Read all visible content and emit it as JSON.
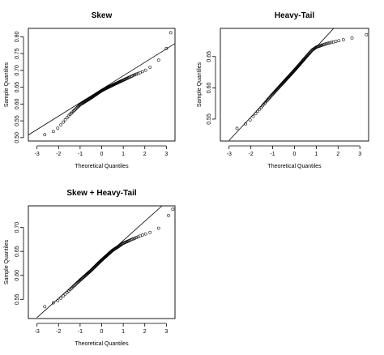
{
  "chart_data": [
    {
      "type": "scatter",
      "title": "Skew",
      "xlabel": "Theoretical Quantiles",
      "ylabel": "Sample Quantiles",
      "xlim": [
        -3.4,
        3.4
      ],
      "ylim": [
        0.49,
        0.825
      ],
      "xticks": [
        -3,
        -2,
        -1,
        0,
        1,
        2,
        3
      ],
      "yticks": [
        0.5,
        0.55,
        0.6,
        0.65,
        0.7,
        0.75,
        0.8
      ],
      "ytick_labels": [
        "0.50",
        "0.55",
        "0.60",
        "0.65",
        "0.70",
        "0.75",
        "0.80"
      ],
      "reference_line": {
        "x": [
          -3.4,
          3.4
        ],
        "y": [
          0.508,
          0.78
        ]
      },
      "qq_curve": [
        [
          -3.25,
          0.496
        ],
        [
          -2.8,
          0.505
        ],
        [
          -2.3,
          0.516
        ],
        [
          -2.0,
          0.53
        ],
        [
          -1.5,
          0.567
        ],
        [
          -1.0,
          0.598
        ],
        [
          -0.5,
          0.618
        ],
        [
          0.0,
          0.64
        ],
        [
          0.5,
          0.656
        ],
        [
          1.0,
          0.671
        ],
        [
          1.5,
          0.686
        ],
        [
          2.0,
          0.699
        ],
        [
          2.3,
          0.712
        ],
        [
          2.6,
          0.728
        ],
        [
          2.8,
          0.74
        ]
      ],
      "n_points": 120,
      "outliers": [
        [
          3.0,
          0.765
        ],
        [
          3.2,
          0.812
        ]
      ]
    },
    {
      "type": "scatter",
      "title": "Heavy-Tail",
      "xlabel": "Theoretical Quantiles",
      "ylabel": "Sample Quantiles",
      "xlim": [
        -3.4,
        3.4
      ],
      "ylim": [
        0.515,
        0.695
      ],
      "xticks": [
        -3,
        -2,
        -1,
        0,
        1,
        2,
        3
      ],
      "yticks": [
        0.55,
        0.6,
        0.65
      ],
      "ytick_labels": [
        "0.55",
        "0.60",
        "0.65"
      ],
      "reference_line": {
        "x": [
          -3.0,
          1.8
        ],
        "y": [
          0.516,
          0.695
        ]
      },
      "qq_curve": [
        [
          -3.1,
          0.527
        ],
        [
          -2.8,
          0.533
        ],
        [
          -2.5,
          0.537
        ],
        [
          -2.2,
          0.543
        ],
        [
          -2.0,
          0.55
        ],
        [
          -1.5,
          0.57
        ],
        [
          -1.0,
          0.59
        ],
        [
          -0.5,
          0.609
        ],
        [
          0.0,
          0.628
        ],
        [
          0.3,
          0.64
        ],
        [
          0.6,
          0.652
        ],
        [
          0.8,
          0.66
        ],
        [
          1.0,
          0.665
        ],
        [
          1.5,
          0.671
        ],
        [
          2.0,
          0.675
        ],
        [
          2.5,
          0.679
        ],
        [
          3.0,
          0.682
        ]
      ],
      "n_points": 120,
      "outliers": [
        [
          3.3,
          0.685
        ]
      ]
    },
    {
      "type": "scatter",
      "title": "Skew + Heavy-Tail",
      "xlabel": "Theoretical Quantiles",
      "ylabel": "Sample Quantiles",
      "xlim": [
        -3.4,
        3.4
      ],
      "ylim": [
        0.51,
        0.745
      ],
      "xticks": [
        -3,
        -2,
        -1,
        0,
        1,
        2,
        3
      ],
      "yticks": [
        0.55,
        0.6,
        0.65,
        0.7
      ],
      "ytick_labels": [
        "0.55",
        "0.60",
        "0.65",
        "0.70"
      ],
      "reference_line": {
        "x": [
          -3.0,
          2.8
        ],
        "y": [
          0.512,
          0.745
        ]
      },
      "qq_curve": [
        [
          -3.1,
          0.527
        ],
        [
          -2.8,
          0.532
        ],
        [
          -2.5,
          0.537
        ],
        [
          -2.0,
          0.548
        ],
        [
          -1.5,
          0.569
        ],
        [
          -1.0,
          0.59
        ],
        [
          -0.5,
          0.61
        ],
        [
          0.0,
          0.632
        ],
        [
          0.5,
          0.652
        ],
        [
          1.0,
          0.667
        ],
        [
          1.5,
          0.677
        ],
        [
          2.0,
          0.686
        ],
        [
          2.4,
          0.692
        ],
        [
          2.7,
          0.7
        ],
        [
          2.9,
          0.707
        ]
      ],
      "n_points": 120,
      "outliers": [
        [
          3.1,
          0.725
        ],
        [
          3.3,
          0.738
        ]
      ]
    }
  ]
}
